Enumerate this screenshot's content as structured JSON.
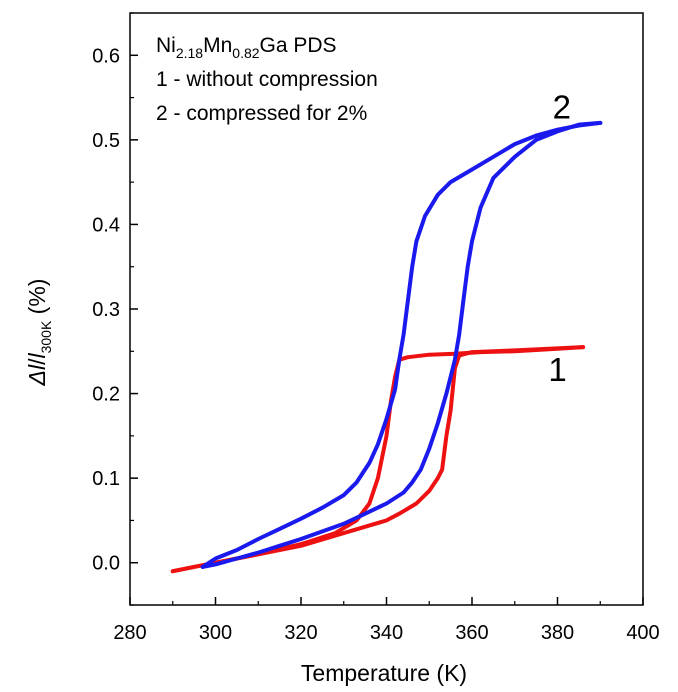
{
  "chart_data": {
    "type": "line",
    "xlabel": "Temperature (K)",
    "ylabel": {
      "prefix": "Δ",
      "l1": "l",
      "slash": "/",
      "l2": "l",
      "sub": "300K",
      "suffix": " (%)"
    },
    "xlim": [
      280,
      400
    ],
    "ylim": [
      -0.05,
      0.65
    ],
    "xticks": [
      "280",
      "300",
      "320",
      "340",
      "360",
      "380",
      "400"
    ],
    "xtick_values": [
      280,
      300,
      320,
      340,
      360,
      380,
      400
    ],
    "yticks": [
      "0.0",
      "0.1",
      "0.2",
      "0.3",
      "0.4",
      "0.5",
      "0.6"
    ],
    "ytick_values": [
      0.0,
      0.1,
      0.2,
      0.3,
      0.4,
      0.5,
      0.6
    ],
    "grid": false,
    "legend": {
      "line1": {
        "a": "Ni",
        "a_sub": "2.18",
        "b": "Mn",
        "b_sub": "0.82",
        "c": "Ga PDS"
      },
      "line2": "1 - without compression",
      "line3": "2 - compressed for 2%"
    },
    "curve_labels": [
      {
        "text": "1",
        "x": 380,
        "y": 0.215
      },
      {
        "text": "2",
        "x": 381,
        "y": 0.525
      }
    ],
    "series": [
      {
        "color": "#ee1111",
        "label": "1",
        "paths": [
          [
            [
              290,
              -0.01
            ],
            [
              296,
              -0.004
            ],
            [
              300,
              0.0
            ],
            [
              310,
              0.01
            ],
            [
              320,
              0.022
            ],
            [
              328,
              0.035
            ],
            [
              333,
              0.05
            ],
            [
              336,
              0.07
            ],
            [
              338,
              0.1
            ],
            [
              340,
              0.15
            ],
            [
              341,
              0.19
            ],
            [
              342,
              0.22
            ],
            [
              343,
              0.24
            ],
            [
              345,
              0.243
            ],
            [
              350,
              0.246
            ],
            [
              356,
              0.247
            ],
            [
              362,
              0.249
            ],
            [
              370,
              0.25
            ],
            [
              380,
              0.253
            ],
            [
              386,
              0.255
            ]
          ],
          [
            [
              386,
              0.255
            ],
            [
              370,
              0.251
            ],
            [
              360,
              0.249
            ],
            [
              357,
              0.245
            ],
            [
              356,
              0.23
            ],
            [
              355,
              0.18
            ],
            [
              354,
              0.15
            ],
            [
              353,
              0.11
            ],
            [
              352,
              0.1
            ],
            [
              350,
              0.085
            ],
            [
              347,
              0.07
            ],
            [
              343,
              0.058
            ],
            [
              340,
              0.05
            ],
            [
              330,
              0.035
            ],
            [
              320,
              0.02
            ],
            [
              310,
              0.01
            ],
            [
              300,
              0.0
            ],
            [
              296,
              -0.004
            ],
            [
              290,
              -0.01
            ]
          ]
        ]
      },
      {
        "color": "#1a1aee",
        "label": "2",
        "paths": [
          [
            [
              297,
              -0.005
            ],
            [
              300,
              0.005
            ],
            [
              305,
              0.015
            ],
            [
              310,
              0.028
            ],
            [
              315,
              0.04
            ],
            [
              320,
              0.052
            ],
            [
              325,
              0.065
            ],
            [
              330,
              0.08
            ],
            [
              333,
              0.095
            ],
            [
              336,
              0.118
            ],
            [
              338,
              0.14
            ],
            [
              340,
              0.17
            ],
            [
              342,
              0.205
            ],
            [
              343,
              0.24
            ],
            [
              344,
              0.27
            ],
            [
              345,
              0.31
            ],
            [
              346,
              0.35
            ],
            [
              347,
              0.38
            ],
            [
              349,
              0.41
            ],
            [
              352,
              0.435
            ],
            [
              355,
              0.45
            ],
            [
              360,
              0.465
            ],
            [
              365,
              0.48
            ],
            [
              370,
              0.495
            ],
            [
              375,
              0.505
            ],
            [
              380,
              0.512
            ],
            [
              385,
              0.517
            ],
            [
              390,
              0.52
            ]
          ],
          [
            [
              390,
              0.52
            ],
            [
              385,
              0.518
            ],
            [
              380,
              0.51
            ],
            [
              375,
              0.5
            ],
            [
              370,
              0.48
            ],
            [
              365,
              0.455
            ],
            [
              362,
              0.42
            ],
            [
              360,
              0.38
            ],
            [
              359,
              0.35
            ],
            [
              358,
              0.31
            ],
            [
              357,
              0.27
            ],
            [
              356,
              0.24
            ],
            [
              354,
              0.2
            ],
            [
              352,
              0.165
            ],
            [
              350,
              0.135
            ],
            [
              348,
              0.11
            ],
            [
              346,
              0.095
            ],
            [
              344,
              0.083
            ],
            [
              340,
              0.07
            ],
            [
              335,
              0.058
            ],
            [
              330,
              0.046
            ],
            [
              325,
              0.037
            ],
            [
              320,
              0.028
            ],
            [
              315,
              0.02
            ],
            [
              310,
              0.012
            ],
            [
              305,
              0.005
            ],
            [
              300,
              -0.002
            ],
            [
              297,
              -0.005
            ]
          ]
        ]
      }
    ]
  }
}
